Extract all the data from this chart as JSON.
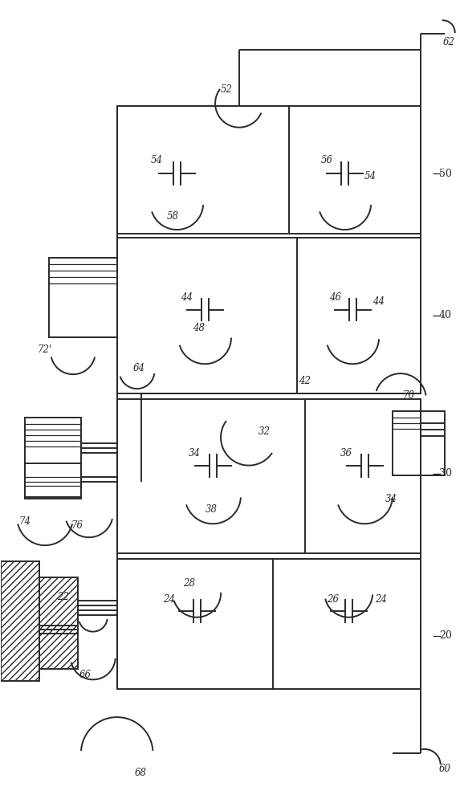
{
  "bg_color": "#ffffff",
  "lc": "#2a2a2a",
  "lw": 1.4,
  "lw_thin": 0.9,
  "fig_width": 5.78,
  "fig_height": 10.0
}
